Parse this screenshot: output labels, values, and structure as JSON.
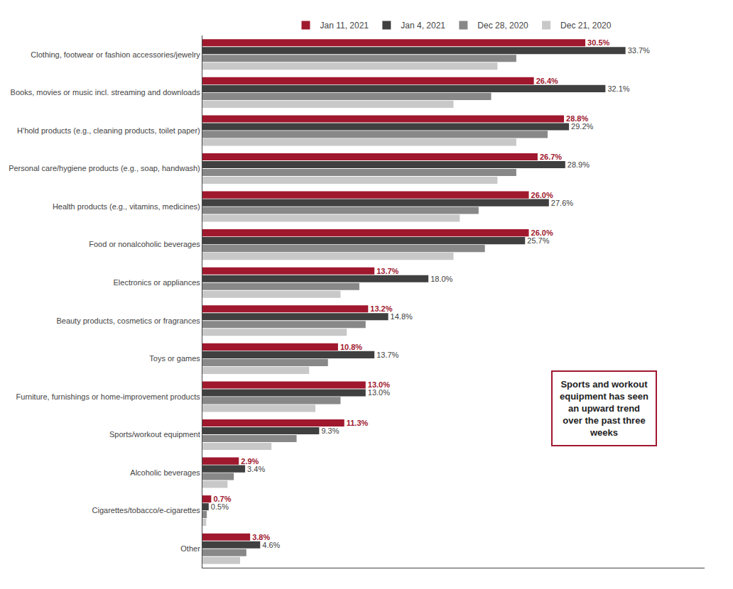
{
  "chart_data": {
    "type": "bar",
    "orientation": "horizontal",
    "categories": [
      "Clothing, footwear or fashion accessories/jewelry",
      "Books, movies or music incl. streaming and downloads",
      "H'hold products (e.g., cleaning products, toilet paper)",
      "Personal care/hygiene products (e.g., soap, handwash)",
      "Health products (e.g., vitamins, medicines)",
      "Food or nonalcoholic beverages",
      "Electronics or appliances",
      "Beauty products, cosmetics or fragrances",
      "Toys or games",
      "Furniture, furnishings or home-improvement products",
      "Sports/workout equipment",
      "Alcoholic beverages",
      "Cigarettes/tobacco/e-cigarettes",
      "Other"
    ],
    "series": [
      {
        "name": "Jan 11, 2021",
        "color": "#A0182E",
        "data_labels": true,
        "values": [
          30.5,
          26.4,
          28.8,
          26.7,
          26.0,
          26.0,
          13.7,
          13.2,
          10.8,
          13.0,
          11.3,
          2.9,
          0.7,
          3.8
        ],
        "value_labels": [
          "30.5%",
          "26.4%",
          "28.8%",
          "26.7%",
          "26.0%",
          "26.0%",
          "13.7%",
          "13.2%",
          "10.8%",
          "13.0%",
          "11.3%",
          "2.9%",
          "0.7%",
          "3.8%"
        ]
      },
      {
        "name": "Jan 4, 2021",
        "color": "#404040",
        "data_labels": true,
        "values": [
          33.7,
          32.1,
          29.2,
          28.9,
          27.6,
          25.7,
          18.0,
          14.8,
          13.7,
          13.0,
          9.3,
          3.4,
          0.5,
          4.6
        ],
        "value_labels": [
          "33.7%",
          "32.1%",
          "29.2%",
          "28.9%",
          "27.6%",
          "25.7%",
          "18.0%",
          "14.8%",
          "13.7%",
          "13.0%",
          "9.3%",
          "3.4%",
          "0.5%",
          "4.6%"
        ]
      },
      {
        "name": "Dec 28, 2020",
        "color": "#888888",
        "data_labels": false,
        "values": [
          25.0,
          23.0,
          27.5,
          25.0,
          22.0,
          22.5,
          12.5,
          13.0,
          10.0,
          11.0,
          7.5,
          2.5,
          0.35,
          3.5
        ]
      },
      {
        "name": "Dec 21, 2020",
        "color": "#C8C8C8",
        "data_labels": false,
        "values": [
          23.5,
          20.0,
          25.0,
          23.5,
          20.5,
          20.0,
          11.0,
          11.5,
          8.5,
          9.0,
          5.5,
          2.0,
          0.3,
          3.0
        ]
      }
    ],
    "xlim": [
      0,
      40
    ],
    "tick_labels": "y",
    "grid": false,
    "legend": "top",
    "annotations": [
      {
        "text": "Sports and workout\nequipment has seen\nan upward trend\nover the past three\nweeks",
        "color": "#A0182E"
      }
    ]
  }
}
